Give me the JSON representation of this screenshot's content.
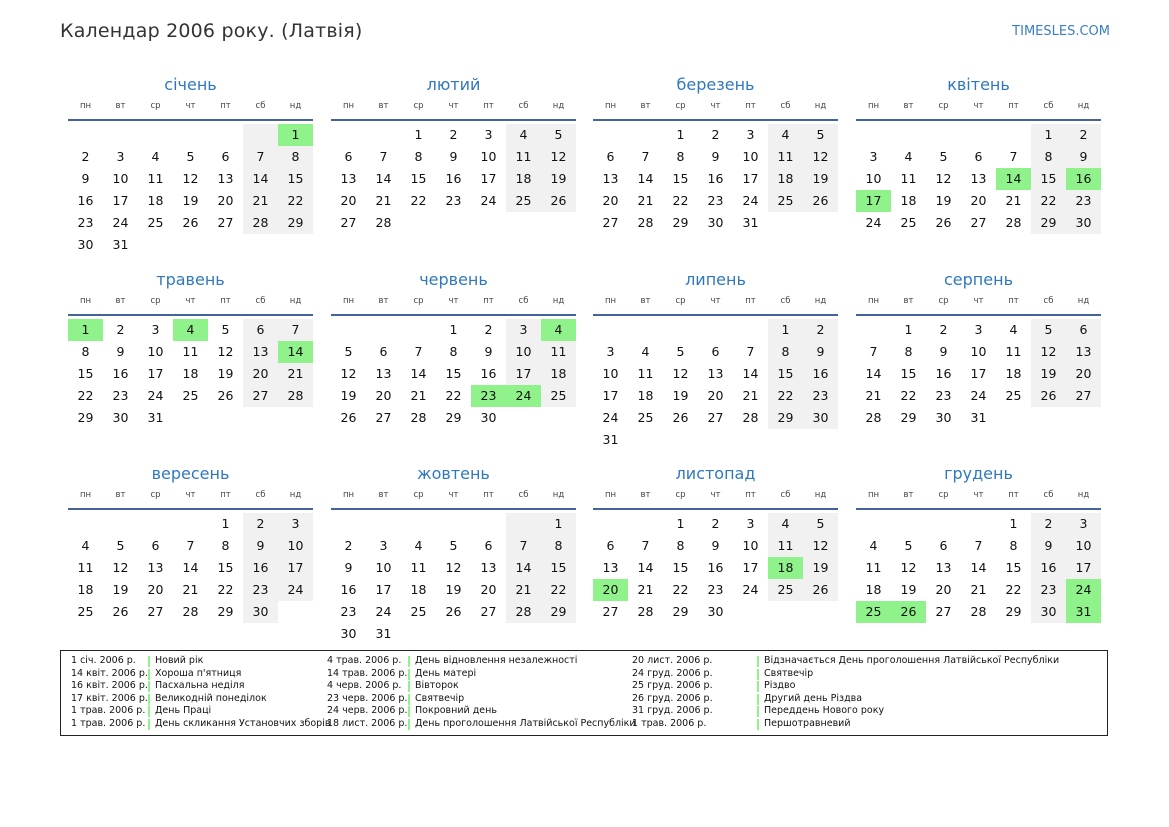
{
  "header": {
    "title": "Календар 2006 року. (Латвія)",
    "site": "TIMESLES.COM"
  },
  "colors": {
    "holiday": "#8ff28a",
    "weekend": "#f1f1f1",
    "accent": "#2f78bf",
    "rule": "#45639a"
  },
  "weekdays": [
    "пн",
    "вт",
    "ср",
    "чт",
    "пт",
    "сб",
    "нд"
  ],
  "months": [
    {
      "name": "січень",
      "offset": 6,
      "days": 31,
      "holidays": [
        1
      ]
    },
    {
      "name": "лютий",
      "offset": 2,
      "days": 28,
      "holidays": []
    },
    {
      "name": "березень",
      "offset": 2,
      "days": 31,
      "holidays": []
    },
    {
      "name": "квітень",
      "offset": 5,
      "days": 30,
      "holidays": [
        14,
        16,
        17
      ]
    },
    {
      "name": "травень",
      "offset": 0,
      "days": 31,
      "holidays": [
        1,
        4,
        14
      ]
    },
    {
      "name": "червень",
      "offset": 3,
      "days": 30,
      "holidays": [
        4,
        23,
        24
      ]
    },
    {
      "name": "липень",
      "offset": 5,
      "days": 31,
      "holidays": []
    },
    {
      "name": "серпень",
      "offset": 1,
      "days": 31,
      "holidays": []
    },
    {
      "name": "вересень",
      "offset": 4,
      "days": 30,
      "holidays": []
    },
    {
      "name": "жовтень",
      "offset": 6,
      "days": 31,
      "holidays": []
    },
    {
      "name": "листопад",
      "offset": 2,
      "days": 30,
      "holidays": [
        18,
        20
      ]
    },
    {
      "name": "грудень",
      "offset": 4,
      "days": 31,
      "holidays": [
        24,
        25,
        26,
        31
      ]
    }
  ],
  "legend": [
    [
      {
        "date": "1 січ. 2006 р.",
        "name": "Новий рік"
      },
      {
        "date": "14 квіт. 2006 р.",
        "name": "Хороша п'ятниця"
      },
      {
        "date": "16 квіт. 2006 р.",
        "name": "Пасхальна неділя"
      },
      {
        "date": "17 квіт. 2006 р.",
        "name": "Великодній понеділок"
      },
      {
        "date": "1 трав. 2006 р.",
        "name": "День Праці"
      },
      {
        "date": "1 трав. 2006 р.",
        "name": "День скликання Установчих зборів"
      }
    ],
    [
      {
        "date": "4 трав. 2006 р.",
        "name": "День відновлення незалежності"
      },
      {
        "date": "14 трав. 2006 р.",
        "name": "День матері"
      },
      {
        "date": "4 черв. 2006 р.",
        "name": "Вівторок"
      },
      {
        "date": "23 черв. 2006 р.",
        "name": "Святвечір"
      },
      {
        "date": "24 черв. 2006 р.",
        "name": "Покровний день"
      },
      {
        "date": "18 лист. 2006 р.",
        "name": "День проголошення Латвійської Республіки"
      }
    ],
    [
      {
        "date": "20 лист. 2006 р.",
        "name": "Відзначається День проголошення Латвійської Республіки"
      },
      {
        "date": "24 груд. 2006 р.",
        "name": "Святвечір"
      },
      {
        "date": "25 груд. 2006 р.",
        "name": "Різдво"
      },
      {
        "date": "26 груд. 2006 р.",
        "name": "Другий день Різдва"
      },
      {
        "date": "31 груд. 2006 р.",
        "name": "Переддень Нового року"
      },
      {
        "date": "1 трав. 2006 р.",
        "name": "Першотравневий"
      }
    ]
  ]
}
